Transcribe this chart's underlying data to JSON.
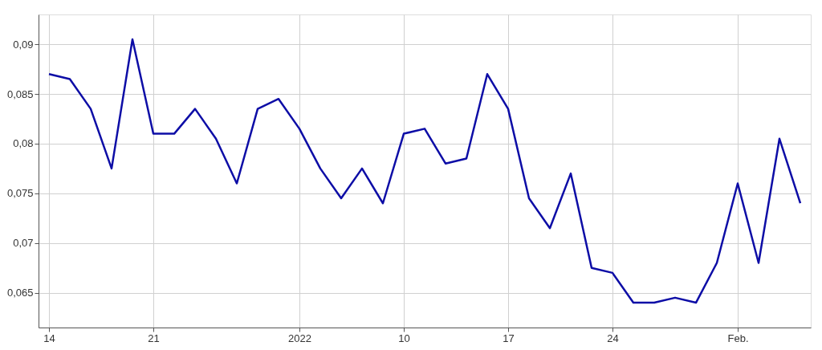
{
  "chart_data": {
    "type": "line",
    "categories": [
      "14",
      null,
      null,
      null,
      null,
      "21",
      null,
      null,
      null,
      null,
      null,
      null,
      "2022",
      null,
      null,
      null,
      null,
      "10",
      null,
      null,
      null,
      null,
      "17",
      null,
      null,
      null,
      null,
      "24",
      null,
      null,
      null,
      null,
      null,
      "Feb.",
      null,
      null,
      null
    ],
    "series": [
      {
        "color": "#0d0da6",
        "values": [
          0.087,
          0.0865,
          0.0835,
          0.0775,
          0.0905,
          0.081,
          0.081,
          0.0835,
          0.0805,
          0.076,
          0.0835,
          0.0845,
          0.0815,
          0.0775,
          0.0745,
          0.0775,
          0.074,
          0.081,
          0.0815,
          0.078,
          0.0785,
          0.087,
          0.0835,
          0.0745,
          0.0715,
          0.077,
          0.0675,
          0.067,
          0.064,
          0.064,
          0.0645,
          0.064,
          0.068,
          0.076,
          0.068,
          0.0805,
          0.074
        ]
      }
    ],
    "ylim": [
      0.0615,
      0.093
    ],
    "yticks": [
      {
        "value": 0.065,
        "label": "0,065"
      },
      {
        "value": 0.07,
        "label": "0,07"
      },
      {
        "value": 0.075,
        "label": "0,075"
      },
      {
        "value": 0.08,
        "label": "0,08"
      },
      {
        "value": 0.085,
        "label": "0,085"
      },
      {
        "value": 0.09,
        "label": "0,09"
      }
    ],
    "grid": true,
    "marker": "none",
    "line_style": "solid"
  }
}
